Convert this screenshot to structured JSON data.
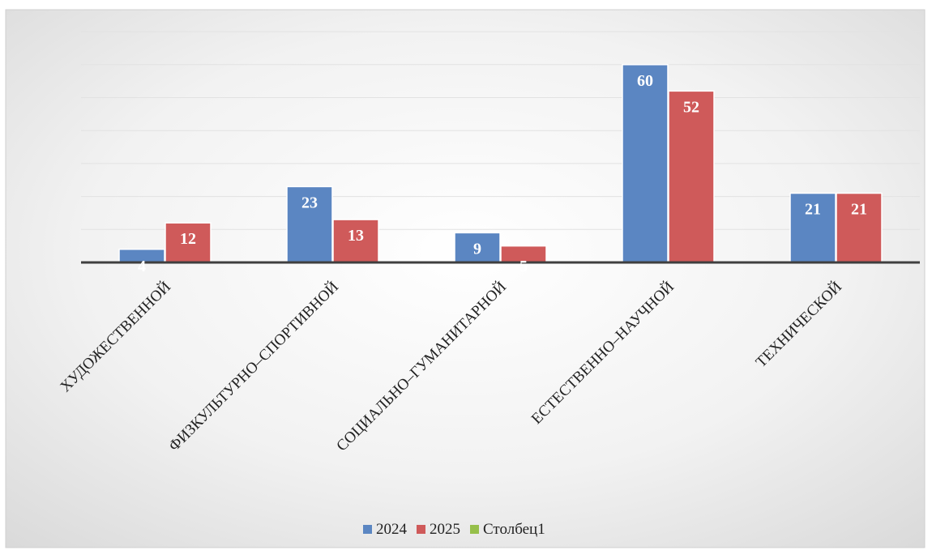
{
  "chart_data": {
    "type": "bar",
    "categories": [
      "ХУДОЖЕСТВЕННОЙ",
      "ФИЗКУЛЬТУРНО–СПОРТИВНОЙ",
      "СОЦИАЛЬНО–ГУМАНИТАРНОЙ",
      "ЕСТЕСТВЕННО–НАУЧНОЙ",
      "ТЕХНИЧЕСКОЙ"
    ],
    "series": [
      {
        "name": "2024",
        "values": [
          4,
          23,
          9,
          60,
          21
        ],
        "color": "#5b86c2"
      },
      {
        "name": "2025",
        "values": [
          12,
          13,
          5,
          52,
          21
        ],
        "color": "#cf5a5a"
      },
      {
        "name": "Столбец1",
        "values": [
          null,
          null,
          null,
          null,
          null
        ],
        "color": "#96bf4a"
      }
    ],
    "ylim": [
      0,
      70
    ],
    "gridlines": true,
    "data_labels": true,
    "legend_position": "bottom"
  }
}
